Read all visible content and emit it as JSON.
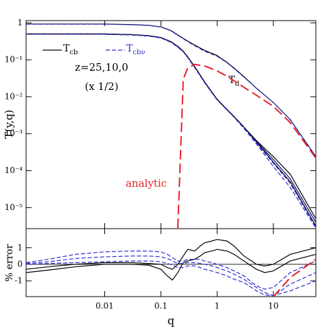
{
  "chart_data": [
    {
      "type": "line",
      "ylabel": "T(y,q)",
      "log_x": true,
      "log_y": true,
      "xlim": [
        0.0004,
        57
      ],
      "ylim": [
        2.7e-06,
        1.15
      ],
      "yticks": [
        {
          "value": 1,
          "label": "1"
        },
        {
          "value": 0.1,
          "label": "10⁻¹"
        },
        {
          "value": 0.01,
          "label": "10⁻²"
        },
        {
          "value": 0.001,
          "label": "10⁻³"
        },
        {
          "value": 0.0001,
          "label": "10⁻⁴"
        },
        {
          "value": 1e-05,
          "label": "10⁻⁵"
        }
      ],
      "annotations": {
        "redshifts": "z=25,10,0",
        "scale": "(x 1/2)",
        "analytic": "analytic",
        "td": "T",
        "td_sub": "d"
      },
      "x": [
        0.0004,
        0.001,
        0.003,
        0.01,
        0.03,
        0.06,
        0.1,
        0.15,
        0.2,
        0.25,
        0.3,
        0.4,
        0.6,
        1,
        1.5,
        2,
        3,
        5,
        10,
        20,
        57
      ],
      "series": [
        {
          "name": "T",
          "name_sub": "cb",
          "color": "#000000",
          "dash": "solid",
          "values": [
            0.93,
            0.93,
            0.93,
            0.93,
            0.9,
            0.86,
            0.78,
            0.62,
            0.47,
            0.38,
            0.32,
            0.25,
            0.18,
            0.13,
            0.085,
            0.06,
            0.035,
            0.017,
            0.007,
            0.0024,
            0.00024
          ]
        },
        {
          "name": "T",
          "name_sub": "cbν",
          "color": "#2b2bd6",
          "dash": "dashed",
          "values": [
            0.92,
            0.92,
            0.92,
            0.92,
            0.89,
            0.85,
            0.77,
            0.61,
            0.46,
            0.37,
            0.31,
            0.24,
            0.17,
            0.125,
            0.083,
            0.058,
            0.034,
            0.017,
            0.007,
            0.0024,
            0.00024
          ]
        },
        {
          "color": "#000000",
          "dash": "solid",
          "values": [
            0.5,
            0.5,
            0.5,
            0.5,
            0.48,
            0.45,
            0.4,
            0.31,
            0.23,
            0.17,
            0.12,
            0.065,
            0.025,
            0.0085,
            0.0045,
            0.0029,
            0.0015,
            0.00065,
            0.00024,
            8e-05,
            5e-06
          ]
        },
        {
          "color": "#000000",
          "dash": "solid",
          "values": [
            0.5,
            0.5,
            0.5,
            0.5,
            0.48,
            0.45,
            0.4,
            0.31,
            0.23,
            0.17,
            0.12,
            0.065,
            0.025,
            0.0085,
            0.0045,
            0.0029,
            0.0015,
            0.00062,
            0.0002,
            6e-05,
            4e-06
          ]
        },
        {
          "color": "#000000",
          "dash": "solid",
          "values": [
            0.5,
            0.5,
            0.5,
            0.5,
            0.48,
            0.45,
            0.4,
            0.31,
            0.23,
            0.17,
            0.12,
            0.065,
            0.025,
            0.0085,
            0.0045,
            0.0029,
            0.0015,
            0.0006,
            0.00017,
            5e-05,
            3.2e-06
          ]
        },
        {
          "color": "#2b2bd6",
          "dash": "dashed",
          "values": [
            0.49,
            0.49,
            0.49,
            0.49,
            0.47,
            0.44,
            0.39,
            0.3,
            0.22,
            0.165,
            0.115,
            0.062,
            0.024,
            0.0082,
            0.0044,
            0.0028,
            0.0014,
            0.0006,
            0.0002,
            6e-05,
            4e-06
          ]
        },
        {
          "color": "#2b2bd6",
          "dash": "dashed",
          "values": [
            0.49,
            0.49,
            0.49,
            0.49,
            0.47,
            0.44,
            0.39,
            0.3,
            0.22,
            0.165,
            0.115,
            0.062,
            0.024,
            0.0082,
            0.0044,
            0.0028,
            0.0014,
            0.00056,
            0.00016,
            4.5e-05,
            3e-06
          ]
        },
        {
          "color": "#2b2bd6",
          "dash": "dashed",
          "values": [
            0.49,
            0.49,
            0.49,
            0.49,
            0.47,
            0.44,
            0.39,
            0.3,
            0.22,
            0.165,
            0.115,
            0.062,
            0.024,
            0.0082,
            0.0044,
            0.0028,
            0.0014,
            0.00053,
            0.00013,
            3.5e-05,
            2.8e-06
          ]
        },
        {
          "color": "#e8202a",
          "dash": "long",
          "values": [
            null,
            null,
            null,
            null,
            null,
            null,
            null,
            null,
            2.8e-06,
            0.03,
            0.06,
            0.075,
            0.068,
            0.05,
            0.036,
            0.027,
            0.018,
            0.011,
            0.0055,
            0.002,
            0.00022
          ]
        }
      ]
    },
    {
      "type": "line",
      "xlabel": "q",
      "ylabel": "% error",
      "log_x": true,
      "xlim": [
        0.0004,
        57
      ],
      "ylim": [
        -1.95,
        2.15
      ],
      "xticks": [
        0.01,
        0.1,
        1,
        10
      ],
      "yticks": [
        1,
        0,
        -1
      ],
      "zero_line": true,
      "x": [
        0.0004,
        0.001,
        0.003,
        0.01,
        0.03,
        0.06,
        0.1,
        0.13,
        0.16,
        0.2,
        0.25,
        0.3,
        0.4,
        0.5,
        0.6,
        0.8,
        1,
        1.5,
        2,
        3,
        5,
        7,
        10,
        20,
        57
      ],
      "series": [
        {
          "color": "#000000",
          "dash": "solid",
          "values": [
            -0.5,
            -0.35,
            -0.15,
            0,
            0,
            -0.05,
            -0.3,
            -0.7,
            -0.95,
            -0.5,
            0.1,
            0.2,
            0.3,
            0.5,
            0.7,
            0.8,
            0.9,
            0.8,
            0.6,
            0.2,
            -0.3,
            -0.5,
            -0.4,
            0.2,
            0.6
          ]
        },
        {
          "color": "#000000",
          "dash": "solid",
          "values": [
            -0.3,
            -0.15,
            0,
            0.1,
            0.1,
            0.05,
            0,
            -0.2,
            -0.3,
            0,
            0.5,
            0.9,
            0.8,
            1.1,
            1.3,
            1.4,
            1.5,
            1.4,
            1.1,
            0.5,
            0,
            -0.1,
            0,
            0.6,
            1.0
          ]
        },
        {
          "color": "#2b2bd6",
          "dash": "dashed",
          "values": [
            0.1,
            0.3,
            0.6,
            0.75,
            0.8,
            0.8,
            0.75,
            0.6,
            0.4,
            0.2,
            0.2,
            0.3,
            0.3,
            0.3,
            0.2,
            0.1,
            0,
            -0.2,
            -0.4,
            -0.7,
            -1.3,
            -1.5,
            -1.4,
            -0.5,
            0.2
          ]
        },
        {
          "color": "#2b2bd6",
          "dash": "dashed",
          "values": [
            0.05,
            0.15,
            0.35,
            0.45,
            0.5,
            0.5,
            0.45,
            0.35,
            0.2,
            0.05,
            0.05,
            0.1,
            0.1,
            0.05,
            0,
            -0.1,
            -0.2,
            -0.4,
            -0.6,
            -0.9,
            -1.4,
            -1.7,
            -1.9,
            -1.2,
            -0.5
          ]
        },
        {
          "color": "#2b2bd6",
          "dash": "dashed",
          "values": [
            0,
            0.05,
            0.1,
            0.15,
            0.2,
            0.2,
            0.15,
            0.05,
            -0.05,
            -0.2,
            -0.2,
            -0.1,
            -0.1,
            -0.2,
            -0.3,
            -0.4,
            -0.5,
            -0.7,
            -0.9,
            -1.1,
            -1.6,
            -1.85,
            -1.9,
            -1.6,
            -1.0
          ]
        },
        {
          "color": "#e8202a",
          "dash": "long",
          "values": [
            null,
            null,
            null,
            null,
            null,
            null,
            null,
            null,
            null,
            null,
            null,
            null,
            null,
            null,
            null,
            null,
            null,
            null,
            null,
            null,
            null,
            null,
            -1.95,
            -0.8,
            0.3
          ]
        }
      ]
    }
  ]
}
